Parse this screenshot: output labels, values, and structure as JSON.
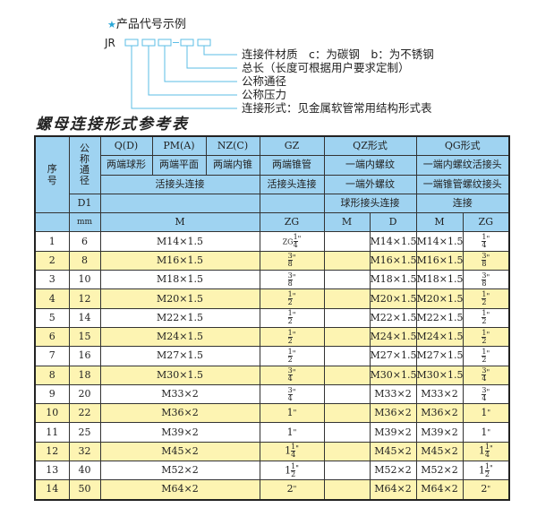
{
  "example": {
    "title": "产品代号示例",
    "prefix": "JR",
    "star_icon": "star-icon",
    "accent": "#2aa7d8",
    "labels": [
      "连接件材质　c：为碳钢　b：为不锈钢",
      "总长（长度可根据用户要求定制）",
      "公称通径",
      "公称压力",
      "连接形式：见金属软管常用结构形式表"
    ]
  },
  "table_title": "螺母连接形式参考表",
  "header": {
    "seq": "序号",
    "dn": "公称通径",
    "d1": "D1",
    "mm": "mm",
    "q": "Q(D)",
    "pm": "PM(A)",
    "nz": "NZ(C)",
    "gz": "GZ",
    "qz": "QZ形式",
    "qg": "QG形式",
    "q_desc": "两端球形",
    "pm_desc": "两端平面",
    "nz_desc": "两端内锥",
    "gz_desc": "两端锥管",
    "qz_desc1": "一端内螺纹",
    "qg_desc1": "一端内螺纹活接头",
    "conn1": "活接头连接",
    "gz_conn": "活接头连接",
    "qz_desc2": "一端外螺纹",
    "qg_desc2": "一端锥管螺纹接头",
    "qz_desc3": "球形接头连接",
    "qg_desc3": "连接",
    "m": "M",
    "zg": "ZG",
    "qz_m": "M",
    "qz_d": "D",
    "qg_m": "M",
    "qg_zg": "ZG"
  },
  "colors": {
    "header_bg": "#9fd3f1",
    "alt_row_bg": "#fdf4b2"
  },
  "rows": [
    {
      "no": "1",
      "dn": "6",
      "m": "M14×1.5",
      "zg": {
        "pre": "ZG",
        "whole": "",
        "n": "1",
        "d": "4"
      },
      "qz_d": "M14×1.5",
      "qg_m": "M14×1.5",
      "qg_zg": {
        "whole": "",
        "n": "1",
        "d": "4"
      }
    },
    {
      "no": "2",
      "dn": "8",
      "m": "M16×1.5",
      "zg": {
        "whole": "",
        "n": "3",
        "d": "8"
      },
      "qz_d": "M16×1.5",
      "qg_m": "M16×1.5",
      "qg_zg": {
        "whole": "",
        "n": "3",
        "d": "8"
      }
    },
    {
      "no": "3",
      "dn": "10",
      "m": "M18×1.5",
      "zg": {
        "whole": "",
        "n": "3",
        "d": "8"
      },
      "qz_d": "M18×1.5",
      "qg_m": "M18×1.5",
      "qg_zg": {
        "whole": "",
        "n": "3",
        "d": "8"
      }
    },
    {
      "no": "4",
      "dn": "12",
      "m": "M20×1.5",
      "zg": {
        "whole": "",
        "n": "1",
        "d": "2"
      },
      "qz_d": "M20×1.5",
      "qg_m": "M20×1.5",
      "qg_zg": {
        "whole": "",
        "n": "1",
        "d": "2"
      }
    },
    {
      "no": "5",
      "dn": "14",
      "m": "M22×1.5",
      "zg": {
        "whole": "",
        "n": "1",
        "d": "2"
      },
      "qz_d": "M22×1.5",
      "qg_m": "M22×1.5",
      "qg_zg": {
        "whole": "",
        "n": "1",
        "d": "2"
      }
    },
    {
      "no": "6",
      "dn": "15",
      "m": "M24×1.5",
      "zg": {
        "whole": "",
        "n": "1",
        "d": "2"
      },
      "qz_d": "M24×1.5",
      "qg_m": "M24×1.5",
      "qg_zg": {
        "whole": "",
        "n": "1",
        "d": "2"
      }
    },
    {
      "no": "7",
      "dn": "16",
      "m": "M27×1.5",
      "zg": {
        "whole": "",
        "n": "1",
        "d": "2"
      },
      "qz_d": "M27×1.5",
      "qg_m": "M27×1.5",
      "qg_zg": {
        "whole": "",
        "n": "1",
        "d": "2"
      }
    },
    {
      "no": "8",
      "dn": "18",
      "m": "M30×1.5",
      "zg": {
        "whole": "",
        "n": "3",
        "d": "4"
      },
      "qz_d": "M30×1.5",
      "qg_m": "M30×1.5",
      "qg_zg": {
        "whole": "",
        "n": "3",
        "d": "4"
      }
    },
    {
      "no": "9",
      "dn": "20",
      "m": "M33×2",
      "zg": {
        "whole": "",
        "n": "3",
        "d": "4"
      },
      "qz_d": "M33×2",
      "qg_m": "M33×2",
      "qg_zg": {
        "whole": "",
        "n": "3",
        "d": "4"
      }
    },
    {
      "no": "10",
      "dn": "22",
      "m": "M36×2",
      "zg": {
        "whole": "1"
      },
      "qz_d": "M36×2",
      "qg_m": "M36×2",
      "qg_zg": {
        "whole": "1"
      }
    },
    {
      "no": "11",
      "dn": "25",
      "m": "M39×2",
      "zg": {
        "whole": "1"
      },
      "qz_d": "M39×2",
      "qg_m": "M39×2",
      "qg_zg": {
        "whole": "1"
      }
    },
    {
      "no": "12",
      "dn": "32",
      "m": "M45×2",
      "zg": {
        "whole": "1",
        "n": "1",
        "d": "4"
      },
      "qz_d": "M45×2",
      "qg_m": "M45×2",
      "qg_zg": {
        "whole": "1",
        "n": "1",
        "d": "4"
      }
    },
    {
      "no": "13",
      "dn": "40",
      "m": "M52×2",
      "zg": {
        "whole": "1",
        "n": "1",
        "d": "2"
      },
      "qz_d": "M52×2",
      "qg_m": "M52×2",
      "qg_zg": {
        "whole": "1",
        "n": "1",
        "d": "2"
      }
    },
    {
      "no": "14",
      "dn": "50",
      "m": "M64×2",
      "zg": {
        "whole": "2"
      },
      "qz_d": "M64×2",
      "qg_m": "M64×2",
      "qg_zg": {
        "whole": "2"
      }
    }
  ]
}
